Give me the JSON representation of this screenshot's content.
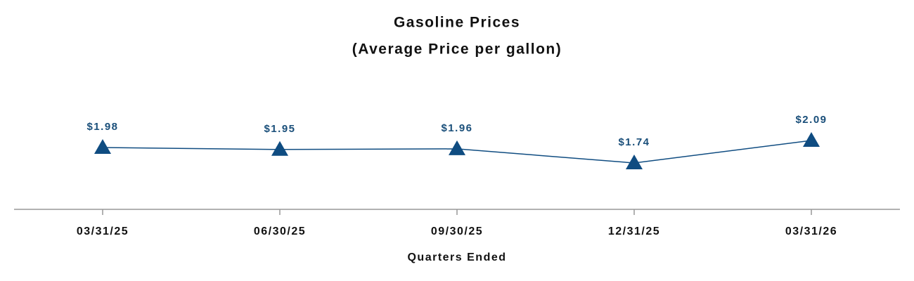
{
  "chart_data": {
    "type": "line",
    "title": "Gasoline Prices",
    "subtitle": "(Average Price per gallon)",
    "x_label": "Quarters Ended",
    "categories": [
      "03/31/25",
      "06/30/25",
      "09/30/25",
      "12/31/25",
      "03/31/26"
    ],
    "series": [
      {
        "name": "Average Price per gallon",
        "color": "#0f4c81",
        "marker": "triangle",
        "values": [
          1.98,
          1.95,
          1.96,
          1.74,
          2.09
        ],
        "value_labels": [
          "$1.98",
          "$1.95",
          "$1.96",
          "$1.74",
          "$2.09"
        ]
      }
    ]
  }
}
